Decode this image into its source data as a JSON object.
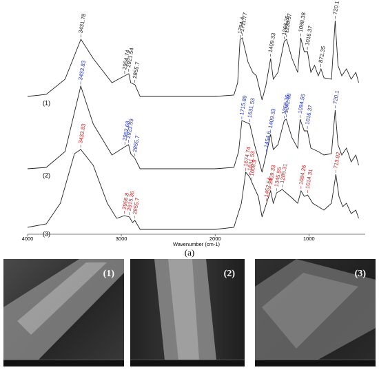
{
  "chart_data": {
    "type": "line",
    "xlabel": "Wavenumber (cm-1)",
    "xlim": [
      4000,
      400
    ],
    "xticks": [
      4000,
      3000,
      2000,
      1000
    ],
    "ylim": [
      0,
      330
    ],
    "series": [
      {
        "name": "(1)",
        "color": "#222222",
        "label_color": "#222222",
        "x": [
          4000,
          3800,
          3600,
          3431,
          3300,
          3100,
          2964,
          2921,
          2900,
          2855,
          2800,
          2000,
          1800,
          1760,
          1734,
          1711,
          1650,
          1600,
          1560,
          1500,
          1460,
          1409,
          1380,
          1330,
          1263,
          1238,
          1180,
          1120,
          1088,
          1050,
          1016,
          980,
          940,
          900,
          872,
          840,
          760,
          720,
          690,
          650,
          600,
          550,
          500,
          470
        ],
        "values": [
          200,
          203,
          225,
          283,
          255,
          220,
          230,
          233,
          220,
          217,
          200,
          200,
          202,
          220,
          283,
          285,
          250,
          235,
          230,
          195,
          215,
          255,
          225,
          235,
          280,
          283,
          255,
          235,
          285,
          265,
          265,
          235,
          245,
          230,
          240,
          227,
          225,
          310,
          245,
          230,
          240,
          225,
          235,
          220
        ],
        "peaks": [
          3431.78,
          2964.74,
          2921.54,
          2855.7,
          1734.4,
          1711.77,
          1409.33,
          1263.26,
          1238.57,
          1088.38,
          1016.37,
          872.35,
          720.1
        ]
      },
      {
        "name": "(2)",
        "color": "#222222",
        "label_color": "#2233cc",
        "x": [
          4000,
          3800,
          3600,
          3433,
          3300,
          3100,
          2962,
          2923,
          2900,
          2855,
          2800,
          2000,
          1800,
          1750,
          1715,
          1631,
          1580,
          1500,
          1454,
          1409,
          1380,
          1330,
          1263,
          1242,
          1180,
          1120,
          1094,
          1050,
          1016,
          980,
          900,
          840,
          760,
          720,
          690,
          650,
          600,
          550,
          500,
          470
        ],
        "values": [
          95,
          97,
          120,
          215,
          160,
          115,
          127,
          130,
          117,
          110,
          95,
          95,
          97,
          120,
          165,
          160,
          130,
          90,
          117,
          145,
          123,
          130,
          165,
          167,
          140,
          125,
          167,
          150,
          150,
          125,
          120,
          115,
          117,
          180,
          130,
          115,
          125,
          105,
          115,
          100
        ],
        "peaks": [
          3433.83,
          2962.68,
          2923.59,
          2855.7,
          1715.89,
          1631.53,
          1454.6,
          1409.33,
          1263.26,
          1242.68,
          1094.55,
          1016.37,
          720.1
        ]
      },
      {
        "name": "(3)",
        "color": "#222222",
        "label_color": "#cc2222",
        "x": [
          4000,
          3800,
          3650,
          3500,
          3433,
          3300,
          3150,
          3050,
          2966,
          2915,
          2880,
          2855,
          2800,
          2000,
          1800,
          1720,
          1674,
          1631,
          1608,
          1540,
          1500,
          1452,
          1409,
          1380,
          1345,
          1285,
          1200,
          1120,
          1084,
          1050,
          1014,
          960,
          900,
          840,
          760,
          713,
          680,
          640,
          600,
          550,
          500,
          470
        ],
        "values": [
          10,
          15,
          45,
          117,
          123,
          100,
          45,
          23,
          27,
          25,
          17,
          20,
          7,
          7,
          10,
          45,
          90,
          83,
          75,
          55,
          25,
          45,
          63,
          45,
          60,
          65,
          55,
          45,
          63,
          55,
          57,
          45,
          40,
          35,
          45,
          87,
          55,
          40,
          45,
          30,
          35,
          23
        ],
        "peaks": [
          3433.83,
          2966.8,
          2915.36,
          2855.7,
          1674.74,
          1631.53,
          1608.9,
          1452.54,
          1409.33,
          1345.55,
          1285.31,
          1084.26,
          1014.31,
          713.92
        ]
      }
    ]
  },
  "panel_label": "(a)",
  "sem_images": [
    "(1)",
    "(2)",
    "(3)"
  ]
}
